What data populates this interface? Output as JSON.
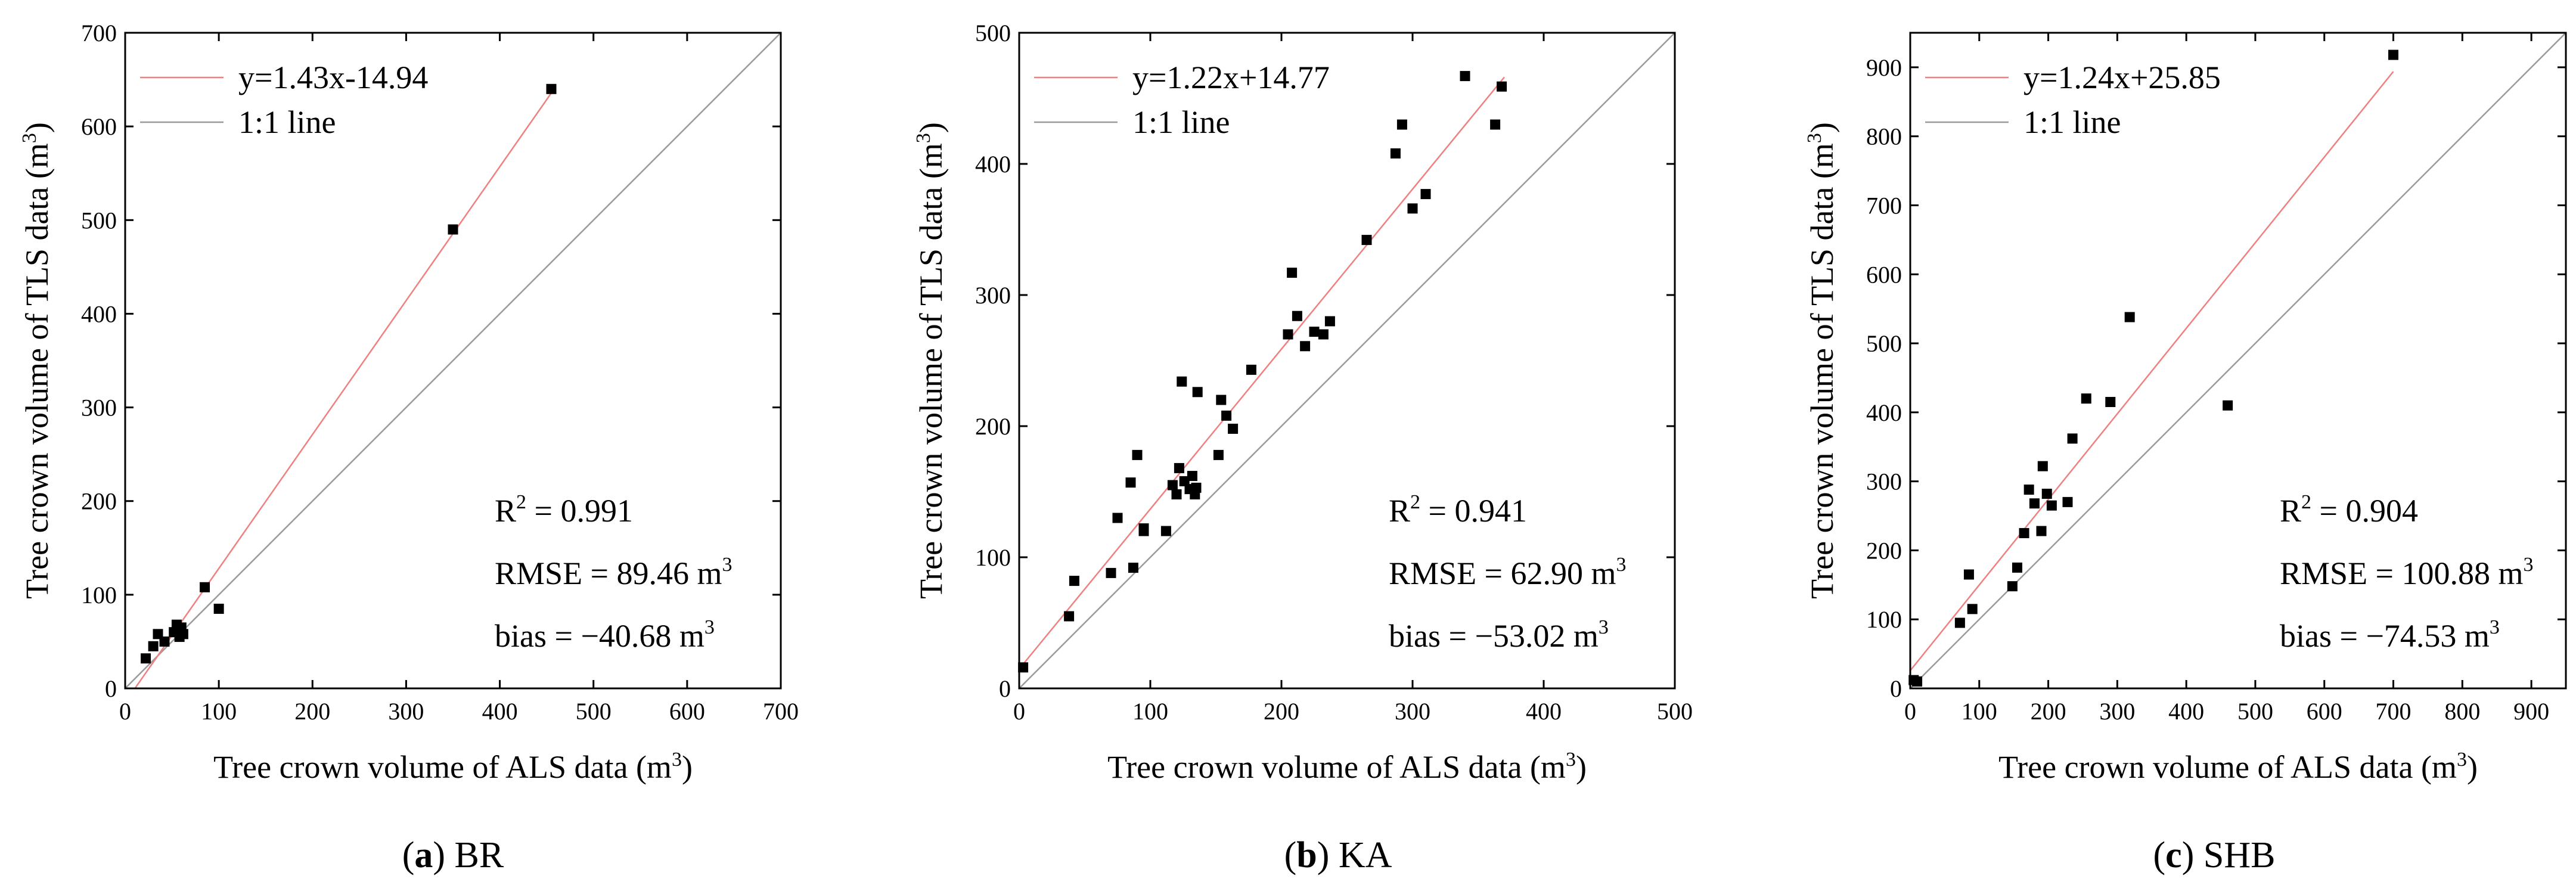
{
  "colors": {
    "fit_line": "#f08080",
    "one_to_one_line": "#9a9a9a",
    "points": "#000000",
    "axes": "#000000"
  },
  "chart_data": [
    {
      "type": "scatter",
      "caption": {
        "letter": "a",
        "close": ")",
        "site": " BR",
        "open": "("
      },
      "xlabel": "Tree crown volume of ALS data (m",
      "ylabel": "Tree crown volume of TLS data (m",
      "label_unit_exp": "3",
      "label_unit_close": ")",
      "xlim": [
        0,
        700
      ],
      "ylim": [
        0,
        700
      ],
      "xticks": [
        0,
        100,
        200,
        300,
        400,
        500,
        600,
        700
      ],
      "yticks": [
        0,
        100,
        200,
        300,
        400,
        500,
        600,
        700
      ],
      "legend": {
        "fit": "y=1.43x-14.94",
        "one_to_one": "1:1 line"
      },
      "fit": {
        "slope": 1.43,
        "intercept": -14.94,
        "x_range": [
          10,
          455
        ]
      },
      "stats": {
        "r2_label": "R",
        "r2_exp": "2",
        "r2_value": " = 0.991",
        "rmse_label": "RMSE = 89.46 m",
        "bias_label": "bias = −40.68 m",
        "unit_exp": "3"
      },
      "points": [
        [
          22,
          32
        ],
        [
          30,
          45
        ],
        [
          35,
          58
        ],
        [
          42,
          50
        ],
        [
          52,
          60
        ],
        [
          55,
          68
        ],
        [
          58,
          55
        ],
        [
          60,
          65
        ],
        [
          62,
          58
        ],
        [
          85,
          108
        ],
        [
          100,
          85
        ],
        [
          350,
          490
        ],
        [
          455,
          640
        ]
      ]
    },
    {
      "type": "scatter",
      "caption": {
        "letter": "b",
        "close": ")",
        "site": " KA",
        "open": "("
      },
      "xlabel": "Tree crown volume of ALS data (m",
      "ylabel": "Tree crown volume of TLS data (m",
      "label_unit_exp": "3",
      "label_unit_close": ")",
      "xlim": [
        0,
        500
      ],
      "ylim": [
        0,
        500
      ],
      "xticks": [
        0,
        100,
        200,
        300,
        400,
        500
      ],
      "yticks": [
        0,
        100,
        200,
        300,
        400,
        500
      ],
      "legend": {
        "fit": "y=1.22x+14.77",
        "one_to_one": "1:1 line"
      },
      "fit": {
        "slope": 1.22,
        "intercept": 14.77,
        "x_range": [
          0,
          370
        ]
      },
      "stats": {
        "r2_label": "R",
        "r2_exp": "2",
        "r2_value": " = 0.941",
        "rmse_label": "RMSE = 62.90 m",
        "bias_label": "bias = −53.02 m",
        "unit_exp": "3"
      },
      "points": [
        [
          3,
          16
        ],
        [
          38,
          55
        ],
        [
          42,
          82
        ],
        [
          70,
          88
        ],
        [
          75,
          130
        ],
        [
          85,
          157
        ],
        [
          87,
          92
        ],
        [
          90,
          178
        ],
        [
          95,
          122
        ],
        [
          95,
          120
        ],
        [
          112,
          120
        ],
        [
          117,
          155
        ],
        [
          120,
          148
        ],
        [
          122,
          168
        ],
        [
          124,
          234
        ],
        [
          126,
          158
        ],
        [
          130,
          152
        ],
        [
          132,
          162
        ],
        [
          134,
          148
        ],
        [
          135,
          153
        ],
        [
          136,
          226
        ],
        [
          152,
          178
        ],
        [
          154,
          220
        ],
        [
          158,
          208
        ],
        [
          163,
          198
        ],
        [
          177,
          243
        ],
        [
          205,
          270
        ],
        [
          208,
          317
        ],
        [
          212,
          284
        ],
        [
          218,
          261
        ],
        [
          225,
          272
        ],
        [
          232,
          270
        ],
        [
          237,
          280
        ],
        [
          265,
          342
        ],
        [
          287,
          408
        ],
        [
          292,
          430
        ],
        [
          300,
          366
        ],
        [
          310,
          377
        ],
        [
          340,
          467
        ],
        [
          363,
          430
        ],
        [
          368,
          459
        ]
      ]
    },
    {
      "type": "scatter",
      "caption": {
        "letter": "c",
        "close": ")",
        "site": " SHB",
        "open": "("
      },
      "xlabel": "Tree crown volume of ALS data (m",
      "ylabel": "Tree crown volume of TLS data (m",
      "label_unit_exp": "3",
      "label_unit_close": ")",
      "xlim": [
        0,
        950
      ],
      "ylim": [
        0,
        950
      ],
      "xticks": [
        0,
        100,
        200,
        300,
        400,
        500,
        600,
        700,
        800,
        900
      ],
      "yticks": [
        0,
        100,
        200,
        300,
        400,
        500,
        600,
        700,
        800,
        900
      ],
      "legend": {
        "fit": "y=1.24x+25.85",
        "one_to_one": "1:1 line"
      },
      "fit": {
        "slope": 1.24,
        "intercept": 25.85,
        "x_range": [
          0,
          700
        ]
      },
      "stats": {
        "r2_label": "R",
        "r2_exp": "2",
        "r2_value": " = 0.904",
        "rmse_label": "RMSE = 100.88 m",
        "bias_label": "bias = −74.53 m",
        "unit_exp": "3"
      },
      "points": [
        [
          5,
          12
        ],
        [
          10,
          10
        ],
        [
          72,
          95
        ],
        [
          85,
          165
        ],
        [
          90,
          115
        ],
        [
          148,
          148
        ],
        [
          155,
          175
        ],
        [
          165,
          225
        ],
        [
          172,
          288
        ],
        [
          180,
          268
        ],
        [
          190,
          228
        ],
        [
          192,
          322
        ],
        [
          198,
          282
        ],
        [
          205,
          265
        ],
        [
          228,
          270
        ],
        [
          235,
          362
        ],
        [
          255,
          420
        ],
        [
          290,
          415
        ],
        [
          318,
          538
        ],
        [
          460,
          410
        ],
        [
          700,
          918
        ]
      ]
    }
  ]
}
